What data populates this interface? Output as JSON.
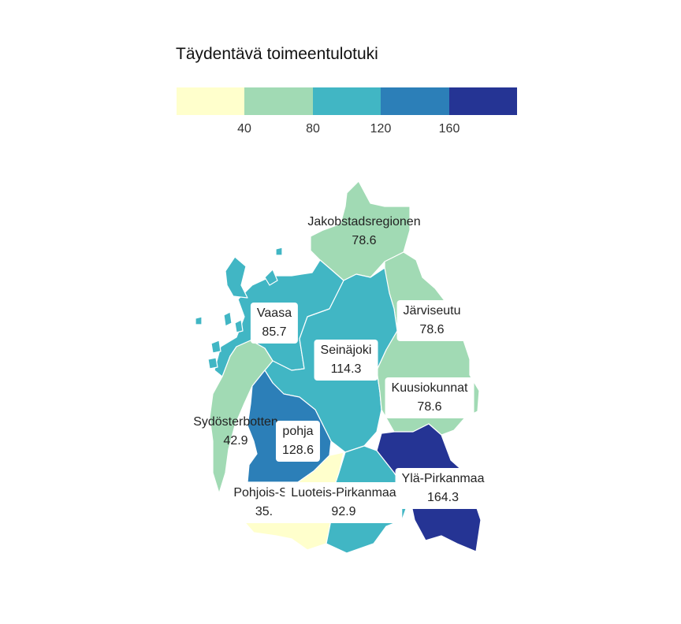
{
  "legend": {
    "title": "Täydentävä toimeentulotuki",
    "colors": [
      "#ffffcc",
      "#a1dab4",
      "#41b6c4",
      "#2c7fb8",
      "#253494"
    ],
    "ticks": [
      "40",
      "80",
      "120",
      "160"
    ]
  },
  "regions": [
    {
      "name": "Jakobstadsregionen",
      "value": "78.6",
      "color": "#a1dab4"
    },
    {
      "name": "Vaasa",
      "value": "85.7",
      "color": "#41b6c4"
    },
    {
      "name": "Järviseutu",
      "value": "78.6",
      "color": "#a1dab4"
    },
    {
      "name": "Seinäjoki",
      "value": "114.3",
      "color": "#41b6c4"
    },
    {
      "name": "Kuusiokunnat",
      "value": "78.6",
      "color": "#a1dab4"
    },
    {
      "name": "Sydösterbotten",
      "value": "42.9",
      "color": "#a1dab4"
    },
    {
      "name": "pohja",
      "value": "128.6",
      "color": "#2c7fb8"
    },
    {
      "name": "Ylä-Pirkanmaa",
      "value": "164.3",
      "color": "#253494"
    },
    {
      "name": "Pohjois-Sa",
      "value": "35.",
      "color": "#ffffcc"
    },
    {
      "name": "Luoteis-Pirkanmaa",
      "value": "92.9",
      "color": "#41b6c4"
    }
  ]
}
